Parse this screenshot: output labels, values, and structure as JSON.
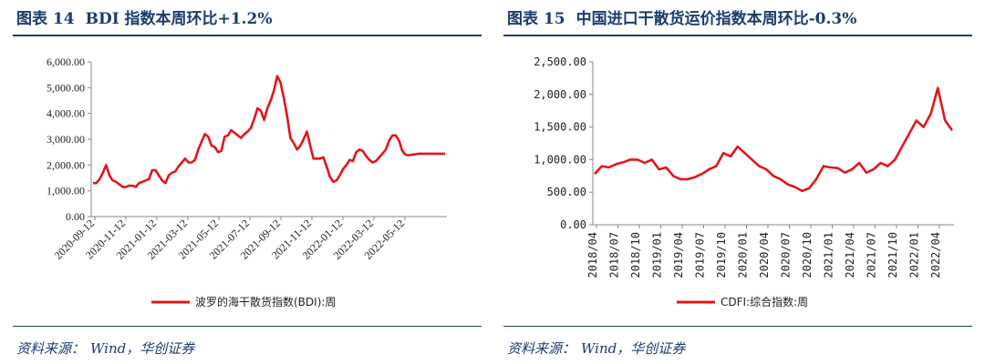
{
  "figures": [
    {
      "title_prefix": "图表 14",
      "title_text": "BDI 指数本周环比+1.2%",
      "source_label": "资料来源：",
      "source_text": "Wind，华创证券"
    },
    {
      "title_prefix": "图表 15",
      "title_text": "中国进口干散货运价指数本周环比-0.3%",
      "source_label": "资料来源：",
      "source_text": "Wind，华创证券"
    }
  ],
  "chart_data": [
    {
      "type": "line",
      "title": "",
      "xlabel": "",
      "ylabel": "",
      "ylim": [
        0,
        6000
      ],
      "y_ticks": [
        "0.00",
        "1,000.00",
        "2,000.00",
        "3,000.00",
        "4,000.00",
        "5,000.00",
        "6,000.00"
      ],
      "x_ticks": [
        "2020-09-12",
        "2020-11-12",
        "2021-01-12",
        "2021-03-12",
        "2021-05-12",
        "2021-07-12",
        "2021-09-12",
        "2021-11-12",
        "2022-01-12",
        "2022-03-12",
        "2022-05-12"
      ],
      "grid": false,
      "legend_position": "bottom",
      "line_color": "#e3151b",
      "series": [
        {
          "name": "波罗的海干散货指数(BDI):周",
          "x": [
            0,
            1,
            2,
            3,
            4,
            5,
            6,
            7,
            8,
            9,
            10,
            11,
            12,
            13,
            14,
            15,
            16,
            17,
            18,
            19,
            20,
            21,
            22,
            23,
            24,
            25,
            26,
            27,
            28,
            29,
            30,
            31,
            32,
            33,
            34,
            35,
            36,
            37,
            38,
            39,
            40,
            41,
            42,
            43,
            44,
            45,
            46,
            47,
            48,
            49,
            50,
            51,
            52,
            53,
            54,
            55,
            56,
            57,
            58,
            59,
            60,
            61,
            62,
            63,
            64,
            65,
            66,
            67,
            68,
            69,
            70,
            71,
            72,
            73,
            74,
            75,
            76,
            77,
            78,
            79,
            80,
            81,
            82,
            83,
            84,
            85,
            86,
            87,
            88,
            89,
            90,
            91,
            92,
            93,
            94,
            95,
            96,
            97,
            98,
            99,
            100,
            101,
            102,
            103,
            104,
            105,
            106,
            107
          ],
          "values": [
            1300,
            1300,
            1450,
            1700,
            2000,
            1600,
            1400,
            1350,
            1250,
            1150,
            1150,
            1200,
            1200,
            1150,
            1300,
            1350,
            1400,
            1450,
            1800,
            1800,
            1600,
            1400,
            1300,
            1600,
            1700,
            1750,
            1950,
            2100,
            2250,
            2100,
            2100,
            2200,
            2600,
            2900,
            3200,
            3100,
            2750,
            2700,
            2500,
            2550,
            3100,
            3150,
            3350,
            3250,
            3150,
            3050,
            3200,
            3300,
            3450,
            3800,
            4200,
            4100,
            3750,
            4200,
            4500,
            4900,
            5450,
            5200,
            4600,
            3900,
            3050,
            2850,
            2600,
            2750,
            3000,
            3300,
            2750,
            2250,
            2250,
            2250,
            2300,
            1950,
            1550,
            1350,
            1400,
            1600,
            1850,
            2000,
            2200,
            2150,
            2500,
            2600,
            2550,
            2350,
            2200,
            2100,
            2150,
            2300,
            2450,
            2600,
            2950,
            3150,
            3150,
            2950,
            2550,
            2400,
            2380,
            2400,
            2420,
            2440,
            2440,
            2440,
            2440,
            2440,
            2440,
            2440,
            2440,
            2440
          ]
        }
      ]
    },
    {
      "type": "line",
      "title": "",
      "xlabel": "",
      "ylabel": "",
      "ylim": [
        0,
        2500
      ],
      "y_ticks": [
        "0.00",
        "500.00",
        "1,000.00",
        "1,500.00",
        "2,000.00",
        "2,500.00"
      ],
      "x_ticks": [
        "2018/04",
        "2018/07",
        "2018/10",
        "2019/01",
        "2019/04",
        "2019/07",
        "2019/10",
        "2020/01",
        "2020/04",
        "2020/07",
        "2020/10",
        "2021/01",
        "2021/04",
        "2021/07",
        "2021/10",
        "2022/01",
        "2022/04"
      ],
      "grid": false,
      "legend_position": "bottom",
      "line_color": "#e3151b",
      "series": [
        {
          "name": "CDFI:综合指数:周",
          "x": [
            0,
            1,
            2,
            3,
            4,
            5,
            6,
            7,
            8,
            9,
            10,
            11,
            12,
            13,
            14,
            15,
            16,
            17,
            18,
            19,
            20,
            21,
            22,
            23,
            24,
            25,
            26,
            27,
            28,
            29,
            30,
            31,
            32,
            33,
            34,
            35,
            36,
            37,
            38,
            39,
            40,
            41,
            42,
            43,
            44,
            45,
            46,
            47,
            48,
            49,
            50
          ],
          "values": [
            780,
            900,
            880,
            930,
            960,
            1000,
            1000,
            950,
            1000,
            850,
            880,
            750,
            700,
            700,
            730,
            780,
            850,
            900,
            1100,
            1050,
            1200,
            1100,
            1000,
            900,
            850,
            750,
            700,
            620,
            580,
            520,
            560,
            700,
            900,
            880,
            870,
            800,
            850,
            950,
            800,
            850,
            950,
            900,
            1000,
            1200,
            1400,
            1600,
            1500,
            1700,
            2100,
            1600,
            1450
          ]
        }
      ]
    }
  ]
}
